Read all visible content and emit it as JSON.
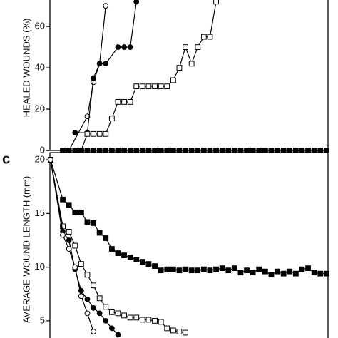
{
  "chart_data": [
    {
      "type": "line",
      "ylabel": "HEALED WOUNDS (%)",
      "xlim": [
        -0.1,
        45.25
      ],
      "ylim": [
        0,
        72.8
      ],
      "yticks": [
        0,
        20,
        40,
        60
      ],
      "series": [
        {
          "color": "#000000",
          "marker": "circle",
          "filled": false,
          "x": [
            2,
            3,
            6,
            7,
            8,
            9
          ],
          "values": [
            0,
            0,
            16.5,
            33,
            42,
            70
          ]
        },
        {
          "color": "#000000",
          "marker": "circle",
          "filled": true,
          "x": [
            4,
            6,
            7,
            8,
            9,
            11,
            12,
            13,
            14
          ],
          "values": [
            8.6,
            8.6,
            35,
            42,
            42,
            50,
            50,
            50,
            72
          ]
        },
        {
          "color": "#000000",
          "marker": "square",
          "filled": false,
          "x": [
            5,
            6,
            7,
            8,
            9,
            10,
            11,
            12,
            13,
            14,
            15,
            16,
            17,
            18,
            19,
            20,
            21,
            22,
            23,
            24,
            25,
            26,
            27
          ],
          "values": [
            0,
            8,
            8,
            8,
            8,
            15.5,
            23.5,
            23.5,
            23.5,
            31,
            31,
            31,
            31,
            31,
            31,
            34,
            40,
            50,
            42,
            50,
            55,
            55,
            72
          ]
        },
        {
          "color": "#000000",
          "marker": "square",
          "filled": true,
          "x": [
            2,
            3,
            4,
            5,
            6,
            7,
            8,
            9,
            10,
            11,
            12,
            13,
            14,
            15,
            16,
            17,
            18,
            19,
            20,
            21,
            22,
            23,
            24,
            25,
            26,
            27,
            28,
            29,
            30,
            31,
            32,
            33,
            34,
            35,
            36,
            37,
            38,
            39,
            40,
            41,
            42,
            43,
            44,
            45
          ],
          "values": [
            0,
            0,
            0,
            0,
            0,
            0,
            0,
            0,
            0,
            0,
            0,
            0,
            0,
            0,
            0,
            0,
            0,
            0,
            0,
            0,
            0,
            0,
            0,
            0,
            0,
            0,
            0,
            0,
            0,
            0,
            0,
            0,
            0,
            0,
            0,
            0,
            0,
            0,
            0,
            0,
            0,
            0,
            0,
            0
          ]
        }
      ]
    },
    {
      "type": "line",
      "panel_label": "c",
      "ylabel": "AVERAGE WOUND LENGTH (mm)",
      "xlim": [
        -0.1,
        45.25
      ],
      "ylim": [
        3.4,
        20.67
      ],
      "yticks": [
        5,
        10,
        15,
        20
      ],
      "series": [
        {
          "color": "#000000",
          "marker": "square",
          "filled": true,
          "x": [
            0,
            2,
            3,
            4,
            5,
            6,
            7,
            8,
            9,
            10,
            11,
            12,
            13,
            14,
            15,
            16,
            17,
            18,
            19,
            20,
            21,
            22,
            23,
            24,
            25,
            26,
            27,
            28,
            29,
            30,
            31,
            32,
            33,
            34,
            35,
            36,
            37,
            38,
            39,
            40,
            41,
            42,
            43,
            44,
            45
          ],
          "values": [
            20,
            16.3,
            15.8,
            15.1,
            15.1,
            14.2,
            14.1,
            13.2,
            12.7,
            11.7,
            11.3,
            11.1,
            10.9,
            10.7,
            10.5,
            10.3,
            10.1,
            9.7,
            9.8,
            9.8,
            9.7,
            9.8,
            9.7,
            9.7,
            9.8,
            9.7,
            9.8,
            9.9,
            9.7,
            9.9,
            9.5,
            9.7,
            9.5,
            9.8,
            9.6,
            9.3,
            9.6,
            9.4,
            9.6,
            9.4,
            9.8,
            9.9,
            9.5,
            9.4,
            9.4
          ]
        },
        {
          "color": "#000000",
          "marker": "square",
          "filled": false,
          "x": [
            0,
            2,
            3,
            4,
            5,
            6,
            7,
            8,
            9,
            10,
            11,
            12,
            13,
            14,
            15,
            16,
            17,
            18,
            19,
            20,
            21,
            22
          ],
          "values": [
            20,
            13.8,
            13.3,
            12,
            10.3,
            9.3,
            8.3,
            7.1,
            6.3,
            5.8,
            5.7,
            5.5,
            5.3,
            5.3,
            5.1,
            5.1,
            5.0,
            4.9,
            4.3,
            4.1,
            4.0,
            3.9
          ]
        },
        {
          "color": "#000000",
          "marker": "circle",
          "filled": true,
          "x": [
            0,
            2,
            3,
            4,
            5,
            6,
            7,
            8,
            9,
            10,
            11
          ],
          "values": [
            20,
            13.3,
            12.5,
            9.8,
            7.8,
            7,
            6.2,
            5.7,
            5.0,
            4.3,
            3.7
          ]
        },
        {
          "color": "#000000",
          "marker": "circle",
          "filled": false,
          "x": [
            0,
            2,
            3,
            4,
            5,
            6,
            7
          ],
          "values": [
            20,
            13,
            11.7,
            10,
            7.3,
            5.7,
            4
          ]
        }
      ]
    }
  ]
}
